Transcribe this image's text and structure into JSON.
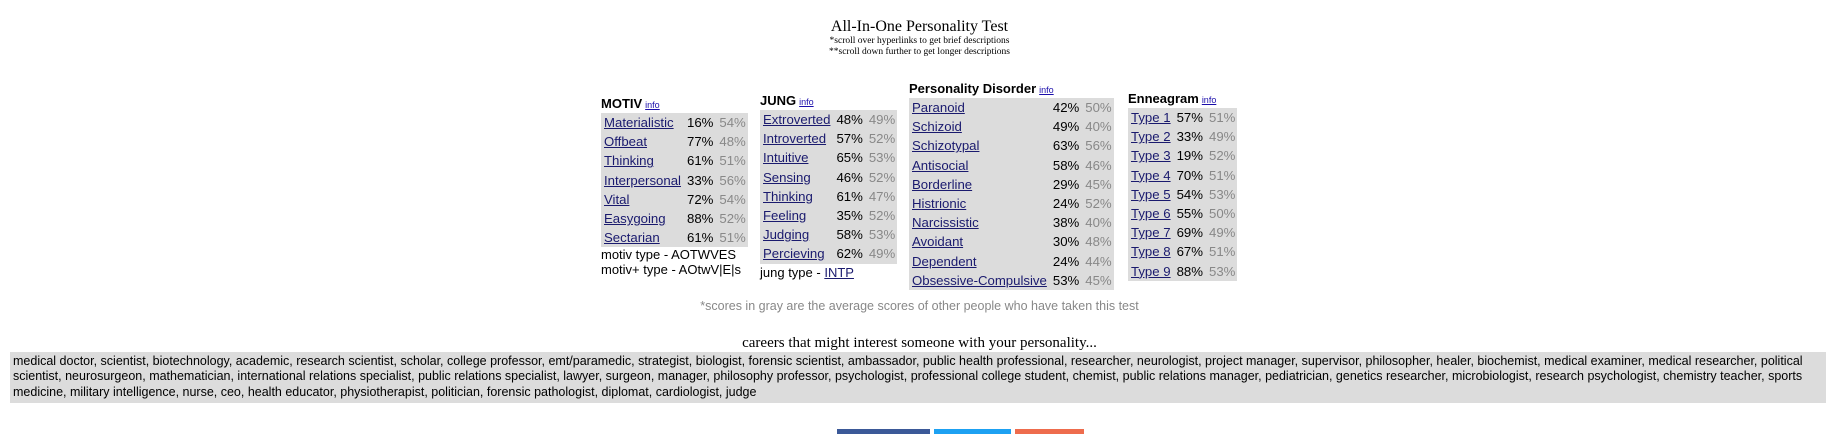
{
  "header": {
    "title": "All-In-One Personality Test",
    "note1": "*scroll over hyperlinks to get brief descriptions",
    "note2": "**scroll down further to get longer descriptions"
  },
  "info_label": "info",
  "motiv": {
    "heading": "MOTIV",
    "rows": [
      {
        "trait": "Materialistic",
        "score": "16%",
        "avg": "54%"
      },
      {
        "trait": "Offbeat",
        "score": "77%",
        "avg": "48%"
      },
      {
        "trait": "Thinking",
        "score": "61%",
        "avg": "51%"
      },
      {
        "trait": "Interpersonal",
        "score": "33%",
        "avg": "56%"
      },
      {
        "trait": "Vital",
        "score": "72%",
        "avg": "54%"
      },
      {
        "trait": "Easygoing",
        "score": "88%",
        "avg": "52%"
      },
      {
        "trait": "Sectarian",
        "score": "61%",
        "avg": "51%"
      }
    ],
    "type_line1": "motiv type - AOTWVES",
    "type_line2": "motiv+ type - AOtwV|E|s"
  },
  "jung": {
    "heading": "JUNG",
    "rows": [
      {
        "trait": "Extroverted",
        "score": "48%",
        "avg": "49%"
      },
      {
        "trait": "Introverted",
        "score": "57%",
        "avg": "52%"
      },
      {
        "trait": "Intuitive",
        "score": "65%",
        "avg": "53%"
      },
      {
        "trait": "Sensing",
        "score": "46%",
        "avg": "52%"
      },
      {
        "trait": "Thinking",
        "score": "61%",
        "avg": "47%"
      },
      {
        "trait": "Feeling",
        "score": "35%",
        "avg": "52%"
      },
      {
        "trait": "Judging",
        "score": "58%",
        "avg": "53%"
      },
      {
        "trait": "Percieving",
        "score": "62%",
        "avg": "49%"
      }
    ],
    "type_prefix": "jung type - ",
    "type_value": "INTP"
  },
  "pd": {
    "heading": "Personality Disorder",
    "rows": [
      {
        "trait": "Paranoid",
        "score": "42%",
        "avg": "50%"
      },
      {
        "trait": "Schizoid",
        "score": "49%",
        "avg": "40%"
      },
      {
        "trait": "Schizotypal",
        "score": "63%",
        "avg": "56%"
      },
      {
        "trait": "Antisocial",
        "score": "58%",
        "avg": "46%"
      },
      {
        "trait": "Borderline",
        "score": "29%",
        "avg": "45%"
      },
      {
        "trait": "Histrionic",
        "score": "24%",
        "avg": "52%"
      },
      {
        "trait": "Narcissistic",
        "score": "38%",
        "avg": "40%"
      },
      {
        "trait": "Avoidant",
        "score": "30%",
        "avg": "48%"
      },
      {
        "trait": "Dependent",
        "score": "24%",
        "avg": "44%"
      },
      {
        "trait": "Obsessive-Compulsive",
        "score": "53%",
        "avg": "45%"
      }
    ]
  },
  "enneagram": {
    "heading": "Enneagram",
    "rows": [
      {
        "trait": "Type 1",
        "score": "57%",
        "avg": "51%"
      },
      {
        "trait": "Type 2",
        "score": "33%",
        "avg": "49%"
      },
      {
        "trait": "Type 3",
        "score": "19%",
        "avg": "52%"
      },
      {
        "trait": "Type 4",
        "score": "70%",
        "avg": "51%"
      },
      {
        "trait": "Type 5",
        "score": "54%",
        "avg": "53%"
      },
      {
        "trait": "Type 6",
        "score": "55%",
        "avg": "50%"
      },
      {
        "trait": "Type 7",
        "score": "69%",
        "avg": "49%"
      },
      {
        "trait": "Type 8",
        "score": "67%",
        "avg": "51%"
      },
      {
        "trait": "Type 9",
        "score": "88%",
        "avg": "53%"
      }
    ]
  },
  "gray_note": "*scores in gray are the average scores of other people who have taken this test",
  "careers": {
    "heading": "careers that might interest someone with your personality...",
    "text": "medical doctor, scientist, biotechnology, academic, research scientist, scholar, college professor, emt/paramedic, strategist, biologist, forensic scientist, ambassador, public health professional, researcher, neurologist, project manager, supervisor, philosopher, healer, biochemist, medical examiner, medical researcher, political scientist, neurosurgeon, mathematician, international relations specialist, public relations specialist, lawyer, surgeon, manager, philosophy professor, psychologist, professional college student, chemist, public relations manager, pediatrician, genetics researcher, microbiologist, research psychologist, chemistry teacher, sports medicine, military intelligence, nurse, ceo, health educator, physiotherapist, politician, forensic pathologist, diplomat, cardiologist, judge"
  },
  "share_colors": {
    "facebook": "#3b5998",
    "twitter": "#1da1f2",
    "email": "#ee6c4d"
  }
}
